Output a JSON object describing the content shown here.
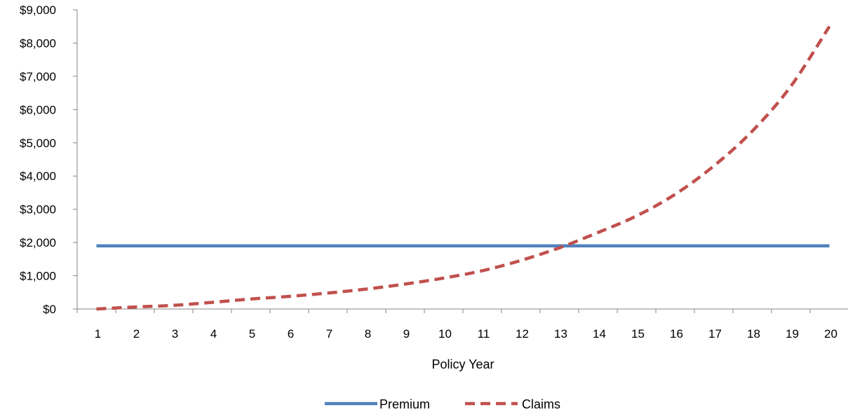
{
  "chart_data": {
    "type": "line",
    "categories": [
      "1",
      "2",
      "3",
      "4",
      "5",
      "6",
      "7",
      "8",
      "9",
      "10",
      "11",
      "12",
      "13",
      "14",
      "15",
      "16",
      "17",
      "18",
      "19",
      "20"
    ],
    "xlabel": "Policy Year",
    "ylabel": "",
    "ylim": [
      0,
      9000
    ],
    "yticks": [
      "$0",
      "$1,000",
      "$2,000",
      "$3,000",
      "$4,000",
      "$5,000",
      "$6,000",
      "$7,000",
      "$8,000",
      "$9,000"
    ],
    "ytick_values": [
      0,
      1000,
      2000,
      3000,
      4000,
      5000,
      6000,
      7000,
      8000,
      9000
    ],
    "grid": false,
    "legend_position": "bottom",
    "series": [
      {
        "name": "Premium",
        "style": "solid",
        "color": "#4f81bd",
        "values": [
          1900,
          1900,
          1900,
          1900,
          1900,
          1900,
          1900,
          1900,
          1900,
          1900,
          1900,
          1900,
          1900,
          1900,
          1900,
          1900,
          1900,
          1900,
          1900,
          1900
        ]
      },
      {
        "name": "Claims",
        "style": "dashed",
        "color": "#c0504d",
        "values": [
          0,
          60,
          110,
          200,
          300,
          380,
          480,
          600,
          750,
          930,
          1150,
          1460,
          1840,
          2300,
          2800,
          3450,
          4300,
          5350,
          6700,
          8500
        ]
      }
    ]
  }
}
